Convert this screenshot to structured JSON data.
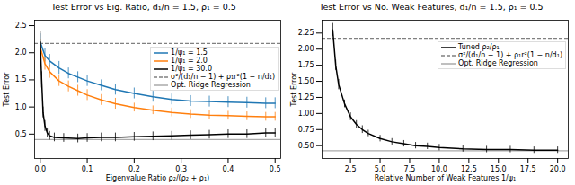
{
  "chart_data": [
    {
      "type": "line",
      "title": "Test Error vs Eig. Ratio, d₁/n = 1.5, ρ₁ = 0.5",
      "x_label": "Eigenvalue Ratio ρ₂/(ρ₂ + ρ₁)",
      "y_label": "Test Error",
      "xlim": [
        -0.012,
        0.512
      ],
      "ylim": [
        0.05,
        2.6
      ],
      "xticks": [
        {
          "value": 0,
          "label": "0.0"
        },
        {
          "value": 0.1,
          "label": "0.1"
        },
        {
          "value": 0.2,
          "label": "0.2"
        },
        {
          "value": 0.3,
          "label": "0.3"
        },
        {
          "value": 0.4,
          "label": "0.4"
        },
        {
          "value": 0.5,
          "label": "0.5"
        }
      ],
      "yticks": [
        {
          "value": 0.5,
          "label": "0.5"
        },
        {
          "value": 1,
          "label": "1.0"
        },
        {
          "value": 1.5,
          "label": "1.5"
        },
        {
          "value": 2,
          "label": "2.0"
        },
        {
          "value": 2.5,
          "label": "2.5"
        }
      ],
      "grid": false,
      "legend": "upper right",
      "series": [
        {
          "name": "1/ψ₁ = 1.5",
          "color": "#1f77b4",
          "x": [
            0,
            0.01,
            0.02,
            0.04,
            0.06,
            0.08,
            0.1,
            0.13,
            0.16,
            0.2,
            0.24,
            0.28,
            0.32,
            0.36,
            0.4,
            0.44,
            0.48,
            0.5
          ],
          "values": [
            2.2,
            1.95,
            1.85,
            1.72,
            1.62,
            1.55,
            1.48,
            1.4,
            1.32,
            1.25,
            1.19,
            1.14,
            1.11,
            1.1,
            1.09,
            1.08,
            1.07,
            1.07
          ],
          "errors": [
            0.15,
            0.12,
            0.12,
            0.12,
            0.1,
            0.1,
            0.1,
            0.1,
            0.1,
            0.1,
            0.1,
            0.1,
            0.1,
            0.1,
            0.1,
            0.1,
            0.1,
            0.1
          ]
        },
        {
          "name": "1/ψ₁ = 2.0",
          "color": "#ff7f0e",
          "x": [
            0,
            0.01,
            0.02,
            0.04,
            0.06,
            0.08,
            0.1,
            0.13,
            0.16,
            0.2,
            0.24,
            0.28,
            0.32,
            0.36,
            0.4,
            0.44,
            0.48,
            0.5
          ],
          "values": [
            2.1,
            1.8,
            1.65,
            1.48,
            1.38,
            1.3,
            1.22,
            1.13,
            1.06,
            0.99,
            0.94,
            0.9,
            0.87,
            0.85,
            0.84,
            0.83,
            0.82,
            0.82
          ],
          "errors": [
            0.15,
            0.12,
            0.12,
            0.1,
            0.1,
            0.1,
            0.1,
            0.1,
            0.1,
            0.08,
            0.08,
            0.08,
            0.08,
            0.08,
            0.08,
            0.08,
            0.08,
            0.08
          ]
        },
        {
          "name": "1/ψ₁ = 30.0",
          "color": "#000000",
          "x": [
            0,
            0.003,
            0.006,
            0.01,
            0.015,
            0.02,
            0.03,
            0.05,
            0.08,
            0.1,
            0.13,
            0.16,
            0.2,
            0.24,
            0.28,
            0.32,
            0.36,
            0.4,
            0.44,
            0.48,
            0.5
          ],
          "values": [
            2.2,
            1.5,
            0.9,
            0.65,
            0.52,
            0.47,
            0.44,
            0.43,
            0.42,
            0.43,
            0.44,
            0.44,
            0.45,
            0.46,
            0.47,
            0.48,
            0.49,
            0.5,
            0.5,
            0.52,
            0.52
          ],
          "errors": [
            0.2,
            0.15,
            0.1,
            0.1,
            0.08,
            0.08,
            0.08,
            0.08,
            0.08,
            0.08,
            0.08,
            0.08,
            0.08,
            0.08,
            0.08,
            0.08,
            0.08,
            0.08,
            0.08,
            0.08,
            0.08
          ]
        }
      ],
      "reference_lines": [
        {
          "name": "σ²/(d₁/n − 1) + ρ₁r²(1 − n/d₁)",
          "value": 2.17,
          "color": "#808080",
          "line_style": "dashed"
        },
        {
          "name": "Opt. Ridge Regression",
          "value": 0.4,
          "color": "#aaaaaa",
          "line_style": "solid"
        }
      ]
    },
    {
      "type": "line",
      "title": "Test Error vs No. Weak Features, d₁/n = 1.5, ρ₁ = 0.5",
      "x_label": "Relative Number of Weak Features 1/ψ₁",
      "y_label": "Test Error",
      "xlim": [
        0.1,
        20.9
      ],
      "ylim": [
        0.3,
        2.45
      ],
      "xticks": [
        2.5,
        {
          "value": 5,
          "label": "5.0"
        },
        7.5,
        {
          "value": 10,
          "label": "10.0"
        },
        12.5,
        {
          "value": 15,
          "label": "15.0"
        },
        17.5,
        {
          "value": 20,
          "label": "20.0"
        }
      ],
      "yticks": [
        {
          "value": 0.5,
          "label": "0.50"
        },
        0.75,
        {
          "value": 1,
          "label": "1.00"
        },
        1.25,
        {
          "value": 1.5,
          "label": "1.50"
        },
        1.75,
        {
          "value": 2,
          "label": "2.00"
        },
        2.25
      ],
      "grid": false,
      "legend": "upper right",
      "series": [
        {
          "name": "Tuned ρ₂/ρ₁",
          "color": "#000000",
          "x": [
            1,
            1.25,
            1.5,
            2,
            2.5,
            3,
            3.5,
            4,
            5,
            6,
            7,
            8,
            9,
            10,
            12,
            14,
            16,
            18,
            20
          ],
          "values": [
            2.3,
            1.75,
            1.45,
            1.15,
            0.95,
            0.83,
            0.75,
            0.69,
            0.61,
            0.56,
            0.53,
            0.5,
            0.49,
            0.47,
            0.45,
            0.44,
            0.44,
            0.43,
            0.43
          ],
          "errors": [
            0.1,
            0.08,
            0.08,
            0.06,
            0.06,
            0.06,
            0.06,
            0.05,
            0.05,
            0.05,
            0.05,
            0.05,
            0.05,
            0.05,
            0.05,
            0.05,
            0.05,
            0.05,
            0.05
          ]
        }
      ],
      "reference_lines": [
        {
          "name": "σ²/(d₁/n − 1) + ρ₁r²(1 − n/d₁)",
          "value": 2.17,
          "color": "#808080",
          "line_style": "dashed"
        },
        {
          "name": "Opt. Ridge Regression",
          "value": 0.42,
          "color": "#aaaaaa",
          "line_style": "solid"
        }
      ]
    }
  ]
}
